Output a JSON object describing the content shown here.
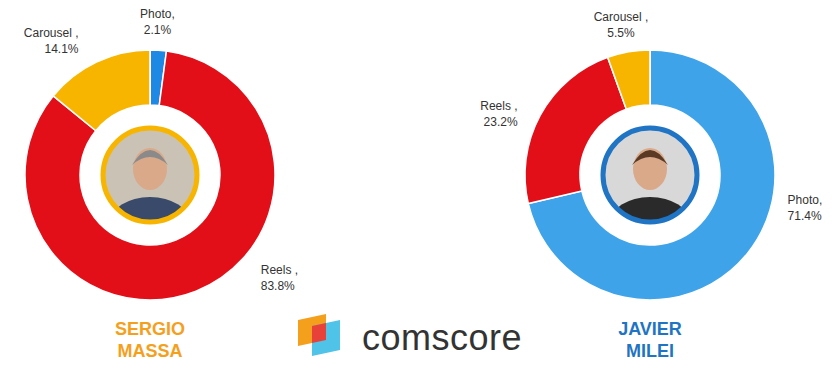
{
  "chart_data": [
    {
      "type": "pie",
      "title": "SERGIO MASSA",
      "categories": [
        "Photo,",
        "Reels ,",
        "Carousel ,"
      ],
      "values": [
        2.1,
        83.8,
        14.1
      ],
      "value_labels": [
        "2.1%",
        "83.8%",
        "14.1%"
      ],
      "colors": [
        "#1e88e5",
        "#e30f18",
        "#f7b500"
      ],
      "data_labels": true
    },
    {
      "type": "pie",
      "title": "JAVIER MILEI",
      "categories": [
        "Photo,",
        "Reels ,",
        "Carousel ,"
      ],
      "values": [
        71.4,
        23.2,
        5.5
      ],
      "value_labels": [
        "71.4%",
        "23.2%",
        "5.5%"
      ],
      "colors": [
        "#3fa3ea",
        "#e30f18",
        "#f7b500"
      ],
      "data_labels": true
    }
  ],
  "logo_text": "comscore"
}
